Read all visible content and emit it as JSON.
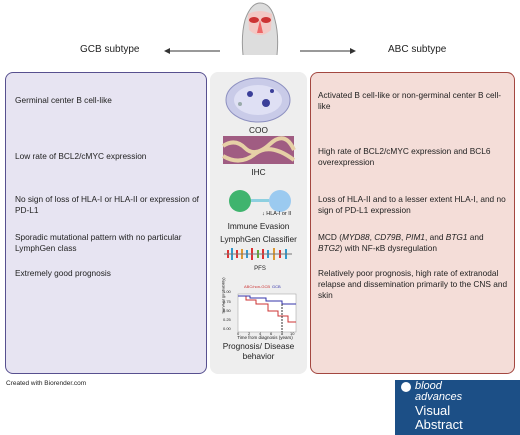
{
  "header": {
    "left_label": "GCB subtype",
    "right_label": "ABC subtype"
  },
  "left": {
    "rows": [
      "Germinal center B cell-like",
      "Low rate of BCL2/cMYC expression",
      "No sign of loss of HLA-I or HLA-II or expression of PD-L1",
      "Sporadic mutational pattern with no particular LymphGen class",
      "Extremely good prognosis"
    ]
  },
  "center": {
    "labels": [
      "COO",
      "IHC",
      "Immune Evasion",
      "LymphGen Classifier",
      "Prognosis/ Disease behavior"
    ],
    "hla_note": "↓ HLA-I or II",
    "km": {
      "title": "PFS",
      "legend": [
        "ABC/non-GCB",
        "GCB"
      ],
      "y_label": "Survival (probability)",
      "x_label": "Time from diagnosis (years)",
      "x_ticks": [
        "0",
        "2",
        "4",
        "6",
        "8",
        "10"
      ],
      "y_ticks": [
        "0.00",
        "0.25",
        "0.50",
        "0.75",
        "1.00"
      ]
    }
  },
  "right": {
    "rows": [
      "Activated B cell-like or non-germinal center B cell-like",
      "High rate of BCL2/cMYC expression and BCL6 overexpression",
      "Loss of HLA-II and to a lesser extent HLA-I, and no sign of PD-L1 expression",
      [
        "MCD (",
        "MYD88",
        ", ",
        "CD79B",
        ", ",
        "PIM1",
        ", and ",
        "BTG1",
        " and ",
        "BTG2",
        ") with NF-κB dysregulation"
      ],
      "Relatively poor prognosis, high rate of extranodal relapse and dissemination primarily to the CNS and skin"
    ]
  },
  "footer": {
    "credit": "Created with Biorender.com"
  },
  "logo": {
    "line1": "blood",
    "line2": "advances",
    "line3": "Visual",
    "line4": "Abstract"
  }
}
